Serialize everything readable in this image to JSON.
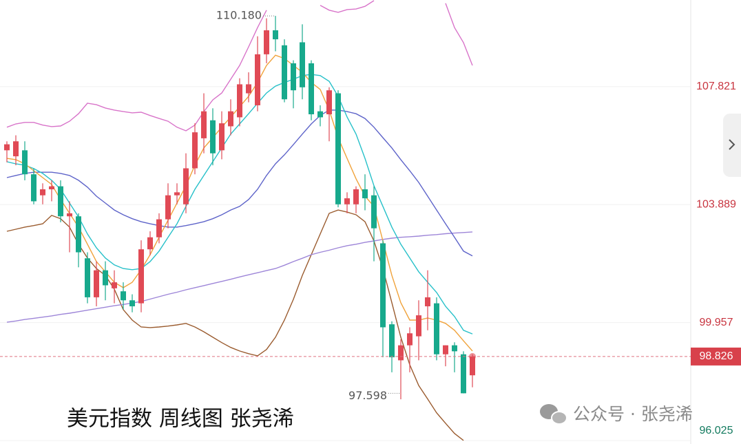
{
  "chart_data": {
    "type": "candlestick",
    "title": "美元指数 周线图 张尧浠",
    "watermark": "公众号 · 张尧浠",
    "ylim": [
      95.91,
      110.71
    ],
    "yticks": [
      107.821,
      103.889,
      99.957,
      96.025
    ],
    "grid": true,
    "up_color": "#e04a55",
    "down_color": "#17a98c",
    "open": [
      105.7,
      105.5,
      105.7,
      104.9,
      104.2,
      104.4,
      104.5,
      103.5,
      103.5,
      102.1,
      100.8,
      101.7,
      101.1,
      101.0,
      100.7,
      100.6,
      102.4,
      102.8,
      103.4,
      104.2,
      103.9,
      105.1,
      106.1,
      106.7,
      105.7,
      106.5,
      106.8,
      107.6,
      107.2,
      108.9,
      109.7,
      109.2,
      108.6,
      109.3,
      108.6,
      107.0,
      106.9,
      107.6,
      103.9,
      103.9,
      104.4,
      104.2,
      102.6,
      99.9,
      98.7,
      99.2,
      99.5,
      100.5,
      100.6,
      98.9,
      99.2,
      98.9,
      98.2
    ],
    "high": [
      106.0,
      106.2,
      106.0,
      105.1,
      104.6,
      104.7,
      104.7,
      104.0,
      103.6,
      102.3,
      102.0,
      102.0,
      101.7,
      101.3,
      100.9,
      102.7,
      103.0,
      103.6,
      104.6,
      104.6,
      105.6,
      106.6,
      107.6,
      107.1,
      107.0,
      107.4,
      108.1,
      108.3,
      109.5,
      110.1,
      110.18,
      109.4,
      108.7,
      109.9,
      108.7,
      107.2,
      107.8,
      107.7,
      104.3,
      104.5,
      104.9,
      104.5,
      102.7,
      100.0,
      99.4,
      99.8,
      100.7,
      101.7,
      100.8,
      99.2,
      99.3,
      99.0,
      98.9
    ],
    "low": [
      105.3,
      105.2,
      104.7,
      103.9,
      103.9,
      104.0,
      103.3,
      102.3,
      101.8,
      100.6,
      100.5,
      100.7,
      100.6,
      100.4,
      100.3,
      100.3,
      102.2,
      102.6,
      103.1,
      103.9,
      103.6,
      104.9,
      105.6,
      105.2,
      105.4,
      106.2,
      106.5,
      107.3,
      107.0,
      108.6,
      109.0,
      107.3,
      107.1,
      107.4,
      106.7,
      106.5,
      106.0,
      103.8,
      103.6,
      103.6,
      103.7,
      102.0,
      98.8,
      98.3,
      97.4,
      98.3,
      98.7,
      99.7,
      98.7,
      98.5,
      98.3,
      97.598,
      97.8
    ],
    "close": [
      105.9,
      106.0,
      104.9,
      104.0,
      104.4,
      104.5,
      103.5,
      103.6,
      102.3,
      100.8,
      101.7,
      101.2,
      101.3,
      100.7,
      100.5,
      102.4,
      102.8,
      103.4,
      104.2,
      104.3,
      105.1,
      106.3,
      107.0,
      105.6,
      106.6,
      107.0,
      107.9,
      107.9,
      108.9,
      109.7,
      109.4,
      107.4,
      107.7,
      107.8,
      106.9,
      106.8,
      107.7,
      103.9,
      104.1,
      104.4,
      104.1,
      103.1,
      99.8,
      98.8,
      99.2,
      99.6,
      100.2,
      100.8,
      98.9,
      99.2,
      99.0,
      97.6,
      98.826
    ],
    "lines": [
      {
        "color": "#d873c9",
        "values": [
          106.47,
          106.58,
          106.63,
          106.63,
          106.54,
          106.49,
          106.51,
          106.67,
          106.92,
          107.27,
          107.22,
          107.11,
          107.04,
          106.99,
          106.95,
          106.97,
          106.86,
          106.76,
          106.67,
          106.47,
          106.35,
          106.54,
          106.99,
          107.38,
          107.61,
          108.07,
          108.53,
          109.15,
          109.79,
          110.37,
          null,
          null,
          null,
          null,
          null,
          110.53,
          110.37,
          110.3,
          110.39,
          110.41,
          110.5,
          110.69,
          null,
          null,
          null,
          null,
          null,
          null,
          null,
          110.6,
          109.79,
          109.29,
          108.53
        ]
      },
      {
        "color": "#9a5b2e",
        "values": [
          103.0,
          103.07,
          103.14,
          103.19,
          103.25,
          103.53,
          103.42,
          103.14,
          102.57,
          102.11,
          101.76,
          101.53,
          101.07,
          100.39,
          100.04,
          99.81,
          99.79,
          99.81,
          99.84,
          99.88,
          99.93,
          99.81,
          99.65,
          99.47,
          99.29,
          99.13,
          99.01,
          98.92,
          98.85,
          99.06,
          99.47,
          100.04,
          100.73,
          101.53,
          102.22,
          102.91,
          103.6,
          103.71,
          103.64,
          103.55,
          103.32,
          102.68,
          101.76,
          100.62,
          99.47,
          98.55,
          97.86,
          97.41,
          96.95,
          96.6,
          96.26,
          96.03,
          null
        ]
      },
      {
        "color": "#9d85d8",
        "values": [
          99.97,
          100.01,
          100.06,
          100.1,
          100.14,
          100.18,
          100.23,
          100.27,
          100.32,
          100.37,
          100.42,
          100.47,
          100.52,
          100.56,
          100.61,
          100.66,
          100.74,
          100.82,
          100.9,
          100.97,
          101.05,
          101.12,
          101.19,
          101.26,
          101.33,
          101.4,
          101.48,
          101.55,
          101.62,
          101.69,
          101.76,
          101.87,
          101.99,
          102.1,
          102.22,
          102.3,
          102.37,
          102.45,
          102.52,
          102.57,
          102.63,
          102.68,
          102.73,
          102.77,
          102.8,
          102.82,
          102.84,
          102.87,
          102.89,
          102.92,
          102.94,
          102.96,
          102.98
        ]
      },
      {
        "color": "#5d63c9",
        "values": [
          104.79,
          104.86,
          104.93,
          104.97,
          104.97,
          104.97,
          104.93,
          104.86,
          104.7,
          104.47,
          104.17,
          103.94,
          103.71,
          103.55,
          103.42,
          103.32,
          103.25,
          103.19,
          103.14,
          103.14,
          103.19,
          103.25,
          103.32,
          103.42,
          103.55,
          103.71,
          103.83,
          104.06,
          104.4,
          104.86,
          105.25,
          105.55,
          105.89,
          106.24,
          106.58,
          106.86,
          107.04,
          107.04,
          106.99,
          106.92,
          106.76,
          106.47,
          106.12,
          105.78,
          105.39,
          105.02,
          104.63,
          104.17,
          103.71,
          103.25,
          102.8,
          102.34,
          102.18
        ]
      },
      {
        "color": "#26c0c9",
        "values": [
          105.32,
          105.25,
          105.2,
          105.09,
          104.93,
          104.7,
          104.4,
          103.94,
          103.48,
          102.91,
          102.45,
          102.11,
          101.88,
          101.76,
          101.72,
          101.76,
          101.99,
          102.34,
          102.8,
          103.25,
          103.83,
          104.4,
          104.86,
          105.32,
          105.78,
          106.24,
          106.58,
          106.92,
          107.27,
          107.61,
          107.84,
          107.96,
          108.07,
          108.19,
          108.23,
          108.19,
          108.0,
          107.5,
          106.81,
          106.24,
          105.43,
          104.52,
          103.83,
          103.14,
          102.57,
          102.11,
          101.65,
          101.3,
          100.96,
          100.5,
          100.16,
          99.7,
          99.58
        ]
      },
      {
        "color": "#f0a23a",
        "values": [
          105.43,
          105.39,
          105.25,
          105.02,
          104.79,
          104.56,
          104.06,
          103.6,
          103.14,
          102.57,
          101.99,
          101.65,
          101.3,
          101.12,
          101.3,
          101.72,
          102.22,
          102.8,
          103.37,
          103.94,
          104.52,
          105.2,
          105.78,
          106.12,
          106.47,
          106.81,
          107.15,
          107.5,
          107.96,
          108.53,
          108.87,
          108.76,
          108.53,
          108.3,
          107.96,
          107.73,
          107.04,
          106.12,
          105.43,
          104.75,
          104.17,
          103.83,
          102.68,
          101.53,
          100.62,
          100.04,
          100.04,
          100.11,
          100.04,
          99.93,
          99.7,
          99.35,
          99.01
        ]
      }
    ],
    "last_price": 98.826,
    "high_label": {
      "value": 110.18,
      "label": "110.180"
    },
    "low_label": 97.598
  }
}
